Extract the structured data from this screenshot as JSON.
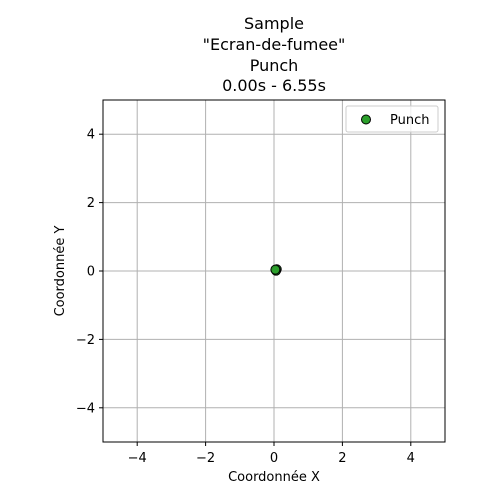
{
  "chart_data": {
    "type": "scatter",
    "title_lines": [
      "Sample",
      "\"Ecran-de-fumee\"",
      "Punch",
      "0.00s - 6.55s"
    ],
    "xlabel": "Coordonnée X",
    "ylabel": "Coordonnée Y",
    "xlim": [
      -5,
      5
    ],
    "ylim": [
      -5,
      5
    ],
    "xticks": [
      -4,
      -2,
      0,
      2,
      4
    ],
    "yticks": [
      -4,
      -2,
      0,
      2,
      4
    ],
    "xtick_labels": [
      "−4",
      "−2",
      "0",
      "2",
      "4"
    ],
    "ytick_labels": [
      "−4",
      "−2",
      "0",
      "2",
      "4"
    ],
    "grid": true,
    "legend_position": "top-right",
    "series": [
      {
        "name": "Punch",
        "color": "#2ca02c",
        "edge_color": "#000000",
        "points": [
          {
            "x": 0.05,
            "y": 0.03
          },
          {
            "x": 0.08,
            "y": 0.05
          },
          {
            "x": 0.06,
            "y": 0.01
          },
          {
            "x": 0.04,
            "y": 0.04
          }
        ]
      }
    ]
  }
}
